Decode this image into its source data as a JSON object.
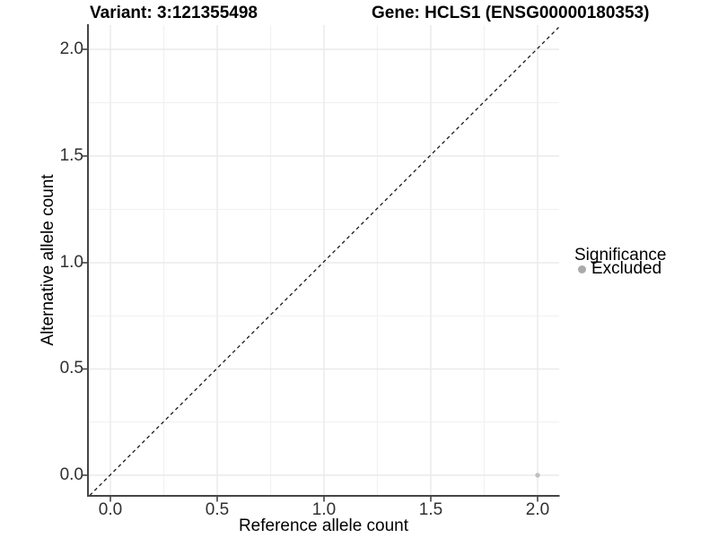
{
  "titles": {
    "left": "Variant: 3:121355498",
    "right": "Gene: HCLS1 (ENSG00000180353)"
  },
  "chart_data": {
    "type": "scatter",
    "xlabel": "Reference allele count",
    "ylabel": "Alternative allele count",
    "x_ticks": [
      "0.0",
      "0.5",
      "1.0",
      "1.5",
      "2.0"
    ],
    "y_ticks": [
      "0.0",
      "0.5",
      "1.0",
      "1.5",
      "2.0"
    ],
    "xlim": [
      -0.105,
      2.105
    ],
    "ylim": [
      -0.105,
      2.105
    ],
    "grid": {
      "shown": true,
      "major_step": 0.5,
      "minor_step": 0.25
    },
    "reference_line": {
      "kind": "identity y=x",
      "style": "dashed",
      "color": "#1a1a1a"
    },
    "points": [
      {
        "x": 2.0,
        "y": 0.0,
        "category": "Excluded",
        "color": "#c0c0c0"
      }
    ],
    "legend": {
      "title": "Significance",
      "position": "right",
      "entries": [
        {
          "label": "Excluded",
          "color": "#aaaaaa"
        }
      ]
    }
  }
}
